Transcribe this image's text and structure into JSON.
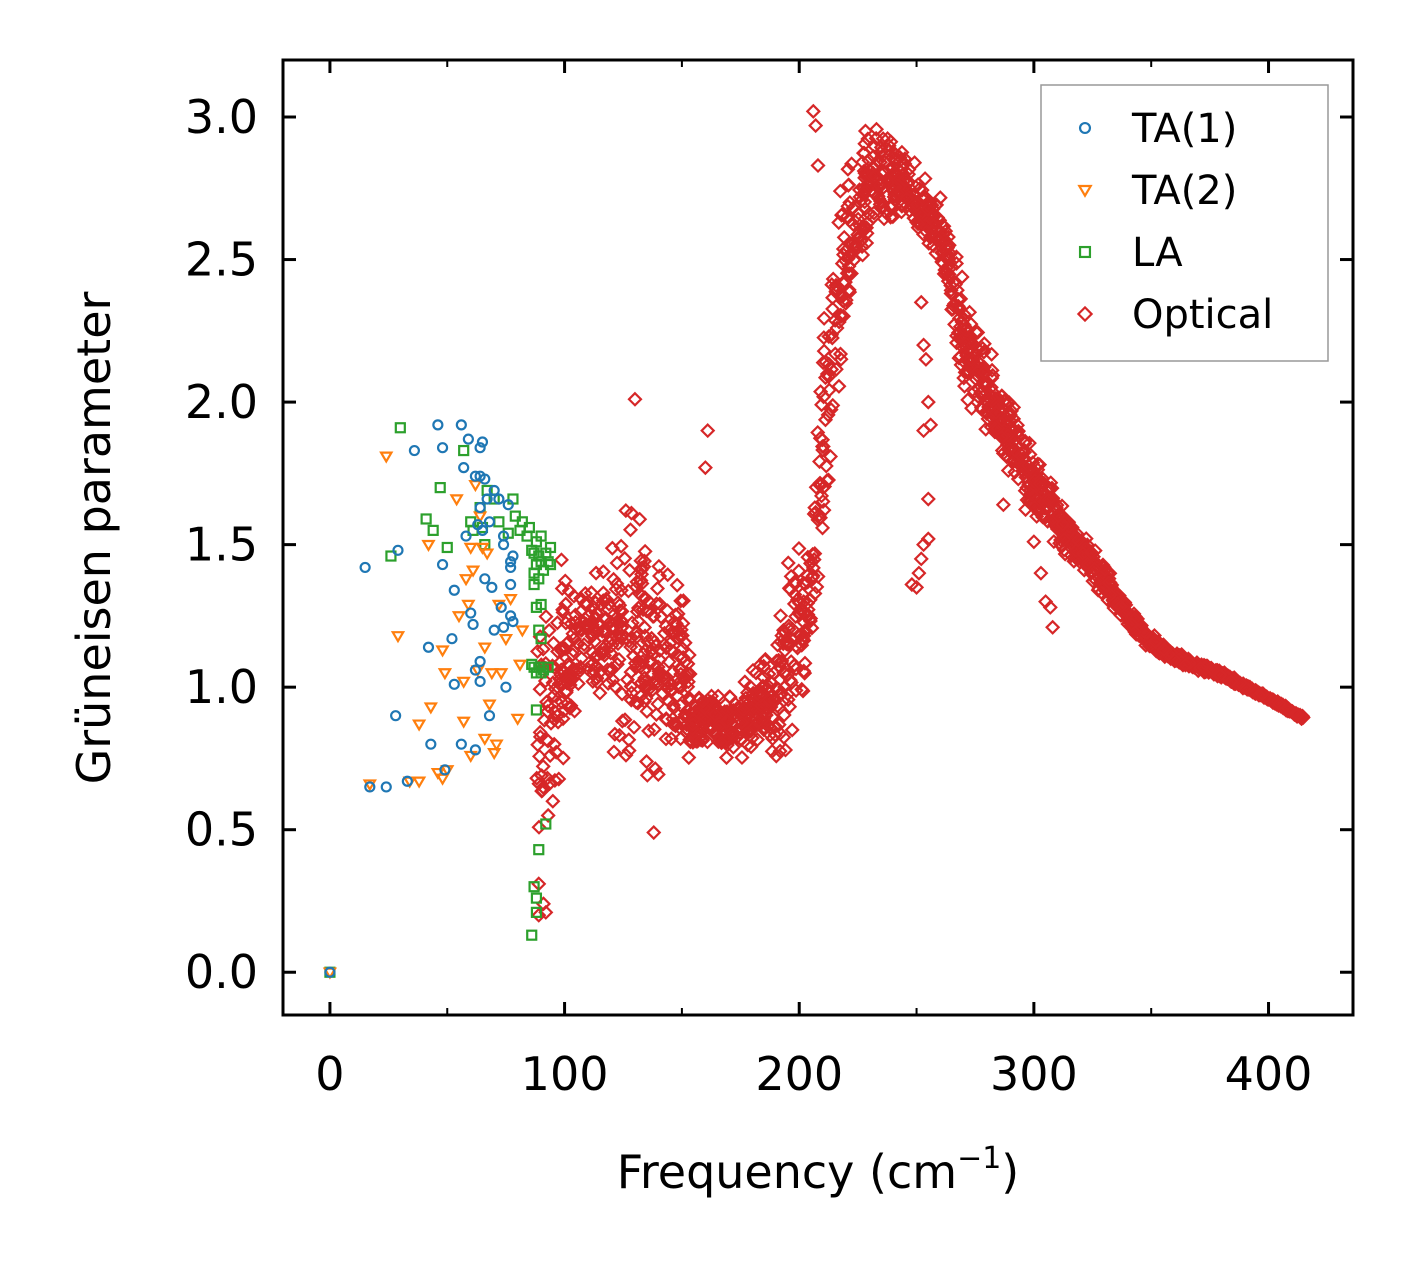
{
  "chart_data": {
    "type": "scatter",
    "title": "",
    "xlabel": "Frequency (cm",
    "xlabel_sup": "−1",
    "xlabel_close": ")",
    "ylabel": "Grüneisen parameter",
    "xlim": [
      -20,
      436
    ],
    "ylim": [
      -0.15,
      3.2
    ],
    "xticks": [
      0,
      100,
      200,
      300,
      400
    ],
    "xtick_labels": [
      "0",
      "100",
      "200",
      "300",
      "400"
    ],
    "yticks": [
      0.0,
      0.5,
      1.0,
      1.5,
      2.0,
      2.5,
      3.0
    ],
    "ytick_labels": [
      "0.0",
      "0.5",
      "1.0",
      "1.5",
      "2.0",
      "2.5",
      "3.0"
    ],
    "grid": false,
    "legend_position": "top-right",
    "series": [
      {
        "name": "TA(1)",
        "color": "#1f77b4",
        "marker": "circle",
        "points": [
          [
            0,
            0.0
          ],
          [
            15,
            1.42
          ],
          [
            17,
            0.65
          ],
          [
            24,
            0.65
          ],
          [
            28,
            0.9
          ],
          [
            29,
            1.48
          ],
          [
            33,
            0.67
          ],
          [
            36,
            1.83
          ],
          [
            42,
            1.14
          ],
          [
            43,
            0.8
          ],
          [
            46,
            1.92
          ],
          [
            48,
            1.84
          ],
          [
            48,
            1.43
          ],
          [
            49,
            0.71
          ],
          [
            52,
            1.17
          ],
          [
            53,
            1.34
          ],
          [
            53,
            1.01
          ],
          [
            56,
            1.92
          ],
          [
            56,
            0.8
          ],
          [
            57,
            1.77
          ],
          [
            58,
            1.53
          ],
          [
            59,
            1.87
          ],
          [
            60,
            1.26
          ],
          [
            61,
            1.22
          ],
          [
            62,
            1.74
          ],
          [
            62,
            1.06
          ],
          [
            62,
            0.78
          ],
          [
            63,
            1.57
          ],
          [
            64,
            1.84
          ],
          [
            64,
            1.74
          ],
          [
            64,
            1.63
          ],
          [
            64,
            1.09
          ],
          [
            64,
            1.02
          ],
          [
            65,
            1.86
          ],
          [
            65,
            1.55
          ],
          [
            66,
            1.73
          ],
          [
            66,
            1.38
          ],
          [
            67,
            1.66
          ],
          [
            68,
            1.58
          ],
          [
            68,
            0.9
          ],
          [
            69,
            1.35
          ],
          [
            70,
            1.69
          ],
          [
            70,
            1.2
          ],
          [
            72,
            1.66
          ],
          [
            73,
            1.28
          ],
          [
            74,
            1.53
          ],
          [
            74,
            1.5
          ],
          [
            74,
            1.21
          ],
          [
            75,
            1.0
          ],
          [
            76,
            1.64
          ],
          [
            77,
            1.44
          ],
          [
            77,
            1.42
          ],
          [
            77,
            1.36
          ],
          [
            77,
            1.25
          ],
          [
            78,
            1.46
          ],
          [
            78,
            1.23
          ]
        ]
      },
      {
        "name": "TA(2)",
        "color": "#ff7f0e",
        "marker": "triangle-down",
        "points": [
          [
            0,
            0.0
          ],
          [
            17,
            0.66
          ],
          [
            24,
            1.81
          ],
          [
            29,
            1.18
          ],
          [
            34,
            0.67
          ],
          [
            38,
            0.87
          ],
          [
            38,
            0.67
          ],
          [
            42,
            1.5
          ],
          [
            43,
            0.93
          ],
          [
            46,
            0.7
          ],
          [
            48,
            1.13
          ],
          [
            48,
            0.68
          ],
          [
            49,
            1.05
          ],
          [
            50,
            0.71
          ],
          [
            54,
            1.66
          ],
          [
            55,
            1.25
          ],
          [
            57,
            1.02
          ],
          [
            57,
            0.88
          ],
          [
            58,
            1.38
          ],
          [
            59,
            1.29
          ],
          [
            60,
            1.49
          ],
          [
            60,
            0.76
          ],
          [
            61,
            1.41
          ],
          [
            62,
            1.71
          ],
          [
            63,
            1.06
          ],
          [
            64,
            1.6
          ],
          [
            65,
            1.49
          ],
          [
            66,
            1.14
          ],
          [
            66,
            0.82
          ],
          [
            67,
            1.47
          ],
          [
            68,
            0.94
          ],
          [
            69,
            1.05
          ],
          [
            70,
            0.77
          ],
          [
            71,
            0.8
          ],
          [
            72,
            1.29
          ],
          [
            73,
            1.05
          ],
          [
            75,
            1.17
          ],
          [
            77,
            1.31
          ],
          [
            80,
            0.89
          ],
          [
            81,
            1.08
          ],
          [
            82,
            1.2
          ]
        ]
      },
      {
        "name": "LA",
        "color": "#2ca02c",
        "marker": "square",
        "points": [
          [
            0,
            0.0
          ],
          [
            26,
            1.46
          ],
          [
            30,
            1.91
          ],
          [
            41,
            1.59
          ],
          [
            44,
            1.55
          ],
          [
            47,
            1.7
          ],
          [
            50,
            1.49
          ],
          [
            57,
            1.83
          ],
          [
            60,
            1.58
          ],
          [
            61,
            1.55
          ],
          [
            64,
            1.63
          ],
          [
            65,
            1.56
          ],
          [
            66,
            1.5
          ],
          [
            67,
            1.69
          ],
          [
            70,
            1.66
          ],
          [
            72,
            1.58
          ],
          [
            76,
            1.54
          ],
          [
            78,
            1.66
          ],
          [
            79,
            1.6
          ],
          [
            81,
            1.55
          ],
          [
            82,
            1.58
          ],
          [
            84,
            1.53
          ],
          [
            85,
            1.56
          ],
          [
            86,
            1.48
          ],
          [
            86,
            1.08
          ],
          [
            86,
            0.13
          ],
          [
            87,
            1.47
          ],
          [
            87,
            1.4
          ],
          [
            87,
            1.36
          ],
          [
            87,
            1.07
          ],
          [
            87,
            0.3
          ],
          [
            88,
            1.51
          ],
          [
            88,
            1.43
          ],
          [
            88,
            1.28
          ],
          [
            88,
            1.05
          ],
          [
            88,
            0.92
          ],
          [
            88,
            0.26
          ],
          [
            88,
            0.21
          ],
          [
            89,
            1.46
          ],
          [
            89,
            1.38
          ],
          [
            89,
            1.2
          ],
          [
            89,
            1.07
          ],
          [
            89,
            0.43
          ],
          [
            90,
            1.53
          ],
          [
            90,
            1.44
          ],
          [
            90,
            1.29
          ],
          [
            90,
            1.17
          ],
          [
            90,
            1.05
          ],
          [
            91,
            1.41
          ],
          [
            91,
            1.06
          ],
          [
            92,
            1.47
          ],
          [
            92,
            0.52
          ],
          [
            93,
            1.44
          ],
          [
            93,
            1.07
          ],
          [
            94,
            1.49
          ],
          [
            94,
            1.43
          ]
        ]
      },
      {
        "name": "Optical",
        "color": "#d62728",
        "marker": "diamond",
        "generator": "piecewise-band",
        "n_points": 2200,
        "band_upper": [
          [
            88,
            1.5
          ],
          [
            100,
            1.55
          ],
          [
            110,
            1.5
          ],
          [
            120,
            1.6
          ],
          [
            130,
            1.85
          ],
          [
            140,
            1.6
          ],
          [
            150,
            1.45
          ],
          [
            155,
            1.05
          ],
          [
            170,
            1.0
          ],
          [
            180,
            1.1
          ],
          [
            190,
            1.2
          ],
          [
            195,
            1.6
          ],
          [
            205,
            1.6
          ],
          [
            210,
            2.3
          ],
          [
            215,
            2.8
          ],
          [
            220,
            2.95
          ],
          [
            230,
            3.05
          ],
          [
            240,
            2.98
          ],
          [
            250,
            2.85
          ],
          [
            260,
            2.75
          ],
          [
            270,
            2.45
          ],
          [
            280,
            2.25
          ],
          [
            290,
            2.05
          ],
          [
            300,
            1.85
          ],
          [
            310,
            1.72
          ],
          [
            320,
            1.58
          ],
          [
            330,
            1.45
          ],
          [
            340,
            1.3
          ],
          [
            350,
            1.2
          ],
          [
            360,
            1.13
          ],
          [
            380,
            1.06
          ],
          [
            400,
            0.97
          ],
          [
            415,
            0.9
          ]
        ],
        "band_lower": [
          [
            88,
            0.2
          ],
          [
            100,
            0.6
          ],
          [
            110,
            0.9
          ],
          [
            120,
            0.65
          ],
          [
            130,
            0.6
          ],
          [
            140,
            0.55
          ],
          [
            150,
            0.65
          ],
          [
            160,
            0.75
          ],
          [
            170,
            0.72
          ],
          [
            180,
            0.72
          ],
          [
            190,
            0.68
          ],
          [
            195,
            0.65
          ],
          [
            205,
            1.0
          ],
          [
            210,
            1.3
          ],
          [
            215,
            1.7
          ],
          [
            220,
            2.1
          ],
          [
            230,
            2.5
          ],
          [
            240,
            2.6
          ],
          [
            250,
            2.55
          ],
          [
            260,
            2.45
          ],
          [
            270,
            2.0
          ],
          [
            280,
            1.85
          ],
          [
            290,
            1.7
          ],
          [
            300,
            1.55
          ],
          [
            310,
            1.45
          ],
          [
            320,
            1.38
          ],
          [
            330,
            1.3
          ],
          [
            340,
            1.2
          ],
          [
            350,
            1.12
          ],
          [
            360,
            1.08
          ],
          [
            380,
            1.03
          ],
          [
            400,
            0.95
          ],
          [
            415,
            0.88
          ]
        ],
        "outliers": [
          [
            130,
            2.01
          ],
          [
            161,
            1.9
          ],
          [
            160,
            1.77
          ],
          [
            206,
            3.02
          ],
          [
            207,
            2.97
          ],
          [
            208,
            2.83
          ],
          [
            252,
            2.35
          ],
          [
            253,
            2.2
          ],
          [
            254,
            2.15
          ],
          [
            253,
            1.9
          ],
          [
            255,
            2.0
          ],
          [
            255,
            1.66
          ],
          [
            255,
            1.52
          ],
          [
            250,
            1.35
          ],
          [
            251,
            1.4
          ],
          [
            252,
            1.45
          ],
          [
            253,
            1.5
          ],
          [
            248,
            1.36
          ],
          [
            256,
            1.92
          ],
          [
            287,
            1.64
          ],
          [
            300,
            1.51
          ],
          [
            303,
            1.4
          ],
          [
            305,
            1.3
          ],
          [
            307,
            1.28
          ],
          [
            308,
            1.21
          ],
          [
            138,
            0.49
          ],
          [
            89,
            0.2
          ],
          [
            91,
            0.24
          ],
          [
            92,
            0.21
          ],
          [
            89,
            0.31
          ],
          [
            95,
            0.6
          ],
          [
            93,
            0.55
          ]
        ]
      }
    ]
  }
}
